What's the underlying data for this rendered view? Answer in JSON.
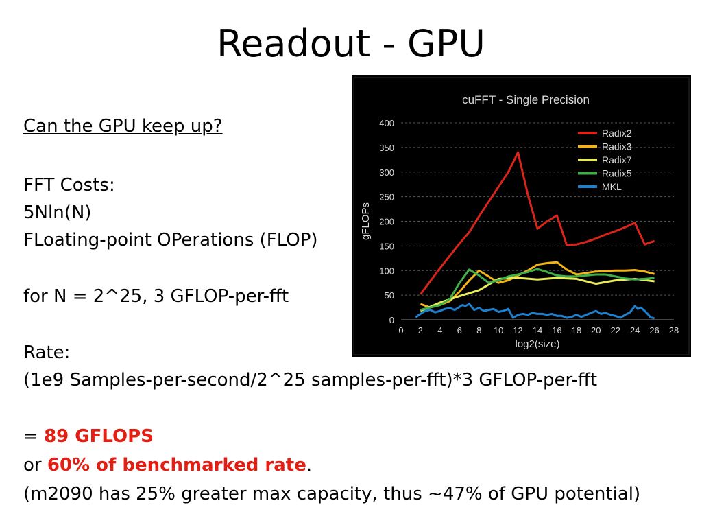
{
  "slide": {
    "title": "Readout - GPU",
    "question": "Can the GPU keep up?",
    "fft_costs": "FFT Costs:",
    "formula": "5Nln(N)",
    "flop_def": "FLoating-point OPerations (FLOP)",
    "for_n": "for N = 2^25, 3 GFLOP-per-fft",
    "rate_label": "Rate:",
    "rate_formula": "(1e9 Samples-per-second/2^25 samples-per-fft)*3 GFLOP-per-fft",
    "equals_prefix": "= ",
    "gflops_value": "89 GFLOPS",
    "or_prefix": "or ",
    "benchmark_pct": "60% of benchmarked rate",
    "period": ".",
    "note": "(m2090 has 25% greater max capacity, thus ~47% of GPU potential)"
  },
  "colors": {
    "chart_bg": "#000000",
    "highlight": "#e41e12",
    "Radix2": "#d8241a",
    "Radix3": "#f2b417",
    "Radix7": "#e8ec5a",
    "Radix5": "#3fae49",
    "MKL": "#1e7fcc"
  },
  "chart_data": {
    "type": "line",
    "title": "cuFFT - Single Precision",
    "xlabel": "log2(size)",
    "ylabel": "gFLOPs",
    "xlim": [
      0,
      28
    ],
    "ylim": [
      0,
      400
    ],
    "x_ticks": [
      "0",
      "2",
      "4",
      "6",
      "8",
      "10",
      "12",
      "14",
      "16",
      "18",
      "20",
      "22",
      "24",
      "26",
      "28"
    ],
    "y_ticks": [
      "0",
      "50",
      "100",
      "150",
      "200",
      "250",
      "300",
      "350",
      "400"
    ],
    "grid": true,
    "legend_position": "top-right",
    "series": [
      {
        "name": "Radix2",
        "x": [
          2,
          4,
          6,
          7,
          8,
          9,
          10,
          11,
          12,
          13,
          14,
          15,
          16,
          17,
          18,
          19,
          20,
          21,
          22,
          23,
          24,
          25,
          26
        ],
        "y": [
          52,
          105,
          155,
          178,
          210,
          240,
          270,
          300,
          340,
          255,
          185,
          200,
          212,
          152,
          153,
          158,
          165,
          173,
          180,
          188,
          197,
          153,
          160
        ]
      },
      {
        "name": "Radix3",
        "x": [
          2,
          3,
          4,
          5,
          6,
          7,
          8,
          9,
          10,
          11,
          12,
          13,
          14,
          15,
          16,
          17,
          18,
          19,
          20,
          21,
          22,
          23,
          24,
          25,
          26
        ],
        "y": [
          32,
          25,
          30,
          38,
          57,
          80,
          100,
          88,
          75,
          80,
          90,
          100,
          112,
          115,
          117,
          102,
          92,
          95,
          98,
          99,
          100,
          100,
          101,
          98,
          93
        ]
      },
      {
        "name": "Radix7",
        "x": [
          2,
          4,
          6,
          8,
          10,
          12,
          14,
          16,
          18,
          20,
          22,
          24,
          26
        ],
        "y": [
          18,
          35,
          48,
          60,
          83,
          85,
          82,
          85,
          83,
          73,
          80,
          83,
          78
        ]
      },
      {
        "name": "Radix5",
        "x": [
          2,
          3,
          4,
          5,
          6,
          7,
          8,
          9,
          10,
          11,
          12,
          13,
          14,
          15,
          16,
          17,
          18,
          19,
          20,
          21,
          22,
          23,
          24,
          25,
          26
        ],
        "y": [
          20,
          25,
          30,
          42,
          75,
          102,
          90,
          75,
          80,
          88,
          92,
          97,
          103,
          97,
          90,
          88,
          88,
          90,
          92,
          92,
          88,
          84,
          82,
          83,
          85
        ]
      },
      {
        "name": "MKL",
        "x": [
          1.5,
          2,
          2.5,
          3,
          3.5,
          4,
          4.5,
          5,
          5.5,
          6,
          6.3,
          6.6,
          7,
          7.5,
          8,
          8.5,
          9,
          9.5,
          10,
          10.5,
          11,
          11.5,
          12,
          12.5,
          13,
          13.5,
          14,
          14.5,
          15,
          15.5,
          16,
          16.5,
          17,
          17.5,
          18,
          18.5,
          19,
          19.5,
          20,
          20.5,
          21,
          21.5,
          22,
          22.5,
          23,
          23.5,
          24,
          24.3,
          24.6,
          25,
          25.3,
          25.6,
          26
        ],
        "y": [
          5,
          12,
          18,
          20,
          15,
          18,
          22,
          24,
          20,
          26,
          30,
          28,
          32,
          20,
          24,
          18,
          20,
          22,
          16,
          18,
          22,
          4,
          10,
          12,
          10,
          14,
          12,
          12,
          10,
          12,
          8,
          8,
          4,
          6,
          10,
          6,
          10,
          14,
          18,
          12,
          14,
          10,
          8,
          4,
          10,
          15,
          28,
          22,
          25,
          18,
          12,
          5,
          3
        ]
      }
    ]
  }
}
